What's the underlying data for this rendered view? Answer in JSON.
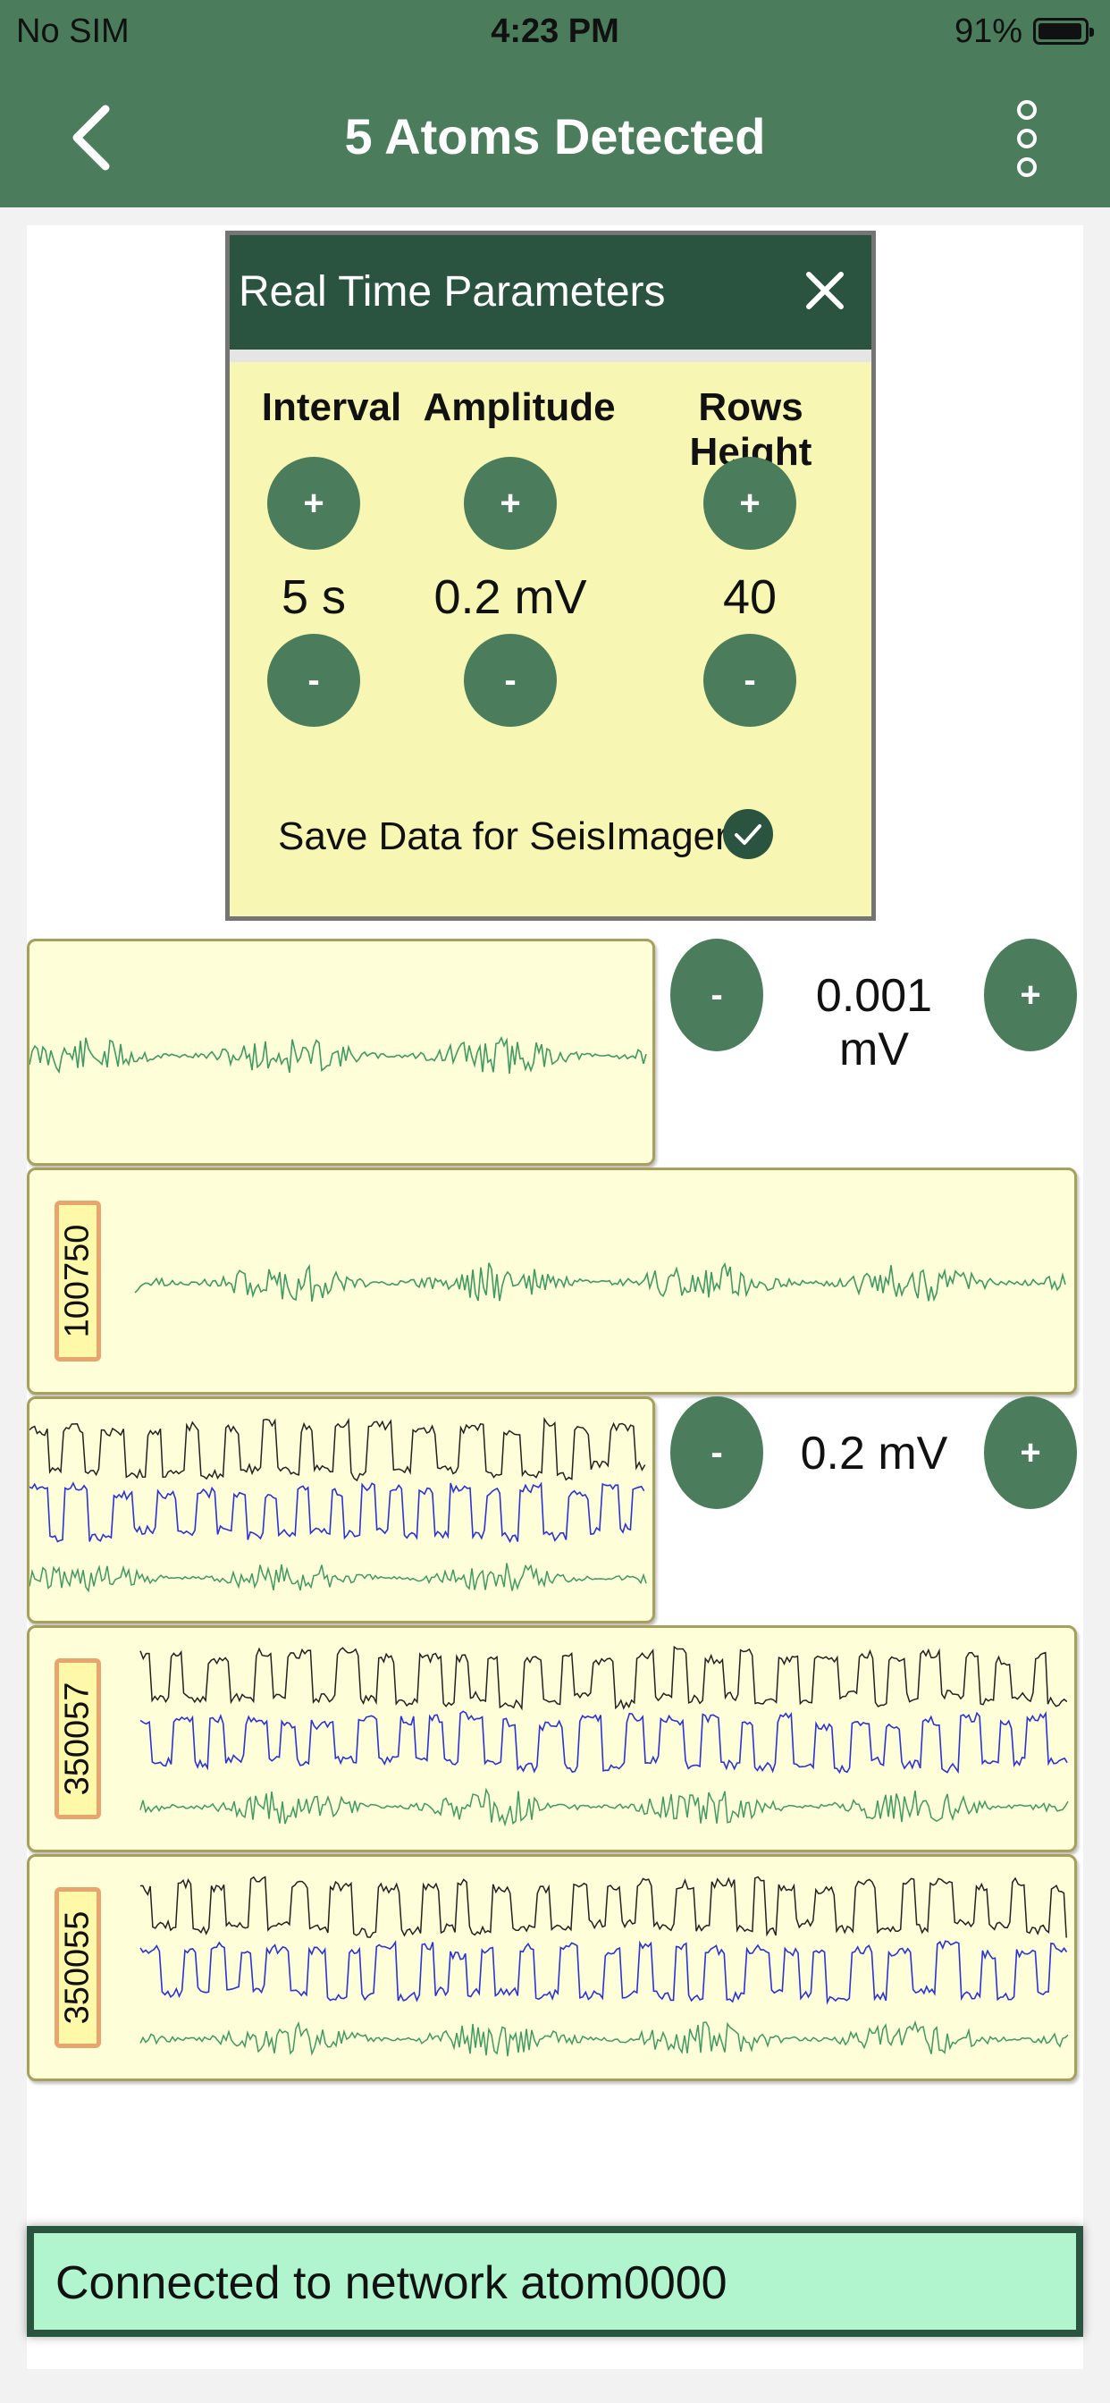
{
  "status_bar": {
    "carrier": "No SIM",
    "time": "4:23 PM",
    "battery": "91%",
    "battery_level": 0.91
  },
  "nav": {
    "title": "5 Atoms Detected",
    "back_icon": "chevron-left-icon",
    "menu_icon": "more-vertical-icon"
  },
  "panel": {
    "title": "Real Time Parameters",
    "close_icon": "close-icon",
    "columns": [
      {
        "label": "Interval",
        "value": "5 s",
        "plus": "+",
        "minus": "-"
      },
      {
        "label": "Amplitude",
        "value": "0.2 mV",
        "plus": "+",
        "minus": "-"
      },
      {
        "label": "Rows Height",
        "value": "40",
        "plus": "+",
        "minus": "-"
      }
    ],
    "save_label": "Save Data for SeisImager",
    "save_checked": true
  },
  "traces": [
    {
      "id": "",
      "amplitude": "0.001 mV",
      "minus": "-",
      "plus": "+"
    },
    {
      "id": "100750"
    },
    {
      "id": "",
      "amplitude": "0.2 mV",
      "minus": "-",
      "plus": "+"
    },
    {
      "id": "350057"
    },
    {
      "id": "350055"
    }
  ],
  "trace_colors": {
    "black": "#222222",
    "blue": "#2b33d6",
    "green": "#3f9a62"
  },
  "connection": {
    "text": "Connected to network atom0000"
  }
}
